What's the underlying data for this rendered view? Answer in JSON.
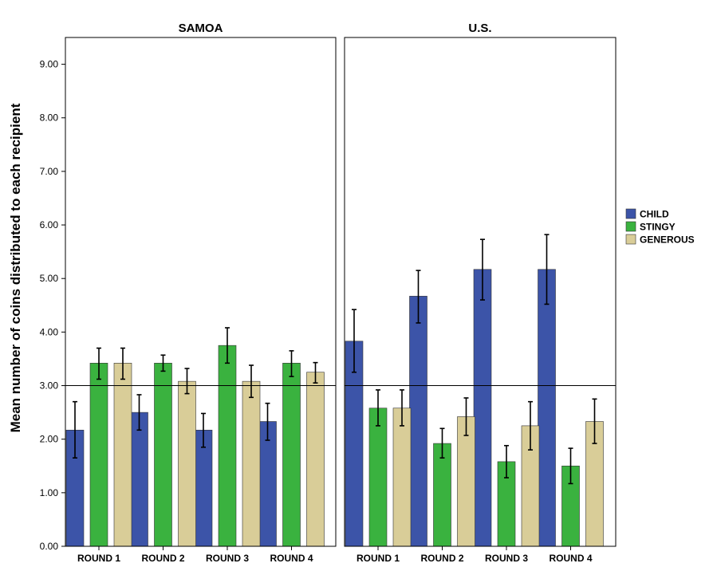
{
  "chart_data": {
    "type": "bar",
    "ylabel": "Mean number of coins distributed to each recipient",
    "ylim": [
      0,
      9.5
    ],
    "yticks": [
      0,
      1,
      2,
      3,
      4,
      5,
      6,
      7,
      8,
      9
    ],
    "ytick_labels": [
      "0.00",
      "1.00",
      "2.00",
      "3.00",
      "4.00",
      "5.00",
      "6.00",
      "7.00",
      "8.00",
      "9.00"
    ],
    "reference_line": 3.0,
    "categories": [
      "ROUND 1",
      "ROUND 2",
      "ROUND 3",
      "ROUND 4"
    ],
    "legend": {
      "position": "right",
      "entries": [
        {
          "name": "CHILD",
          "color": "#3c54a8"
        },
        {
          "name": "STINGY",
          "color": "#3ab23f"
        },
        {
          "name": "GENEROUS",
          "color": "#d9cd98"
        }
      ]
    },
    "panels": [
      {
        "title": "SAMOA",
        "series": [
          {
            "name": "CHILD",
            "values": [
              2.17,
              2.5,
              2.17,
              2.33
            ],
            "err_low": [
              1.65,
              2.17,
              1.85,
              1.98
            ],
            "err_high": [
              2.7,
              2.83,
              2.48,
              2.67
            ]
          },
          {
            "name": "STINGY",
            "values": [
              3.42,
              3.42,
              3.75,
              3.42
            ],
            "err_low": [
              3.12,
              3.27,
              3.42,
              3.17
            ],
            "err_high": [
              3.7,
              3.57,
              4.08,
              3.65
            ]
          },
          {
            "name": "GENEROUS",
            "values": [
              3.42,
              3.08,
              3.08,
              3.25
            ],
            "err_low": [
              3.12,
              2.85,
              2.78,
              3.05
            ],
            "err_high": [
              3.7,
              3.32,
              3.38,
              3.43
            ]
          }
        ]
      },
      {
        "title": "U.S.",
        "series": [
          {
            "name": "CHILD",
            "values": [
              3.83,
              4.67,
              5.17,
              5.17
            ],
            "err_low": [
              3.25,
              4.17,
              4.6,
              4.52
            ],
            "err_high": [
              4.42,
              5.15,
              5.73,
              5.82
            ]
          },
          {
            "name": "STINGY",
            "values": [
              2.58,
              1.92,
              1.58,
              1.5
            ],
            "err_low": [
              2.25,
              1.65,
              1.28,
              1.17
            ],
            "err_high": [
              2.92,
              2.2,
              1.88,
              1.83
            ]
          },
          {
            "name": "GENEROUS",
            "values": [
              2.58,
              2.42,
              2.25,
              2.33
            ],
            "err_low": [
              2.25,
              2.07,
              1.8,
              1.92
            ],
            "err_high": [
              2.92,
              2.77,
              2.7,
              2.75
            ]
          }
        ]
      }
    ]
  }
}
